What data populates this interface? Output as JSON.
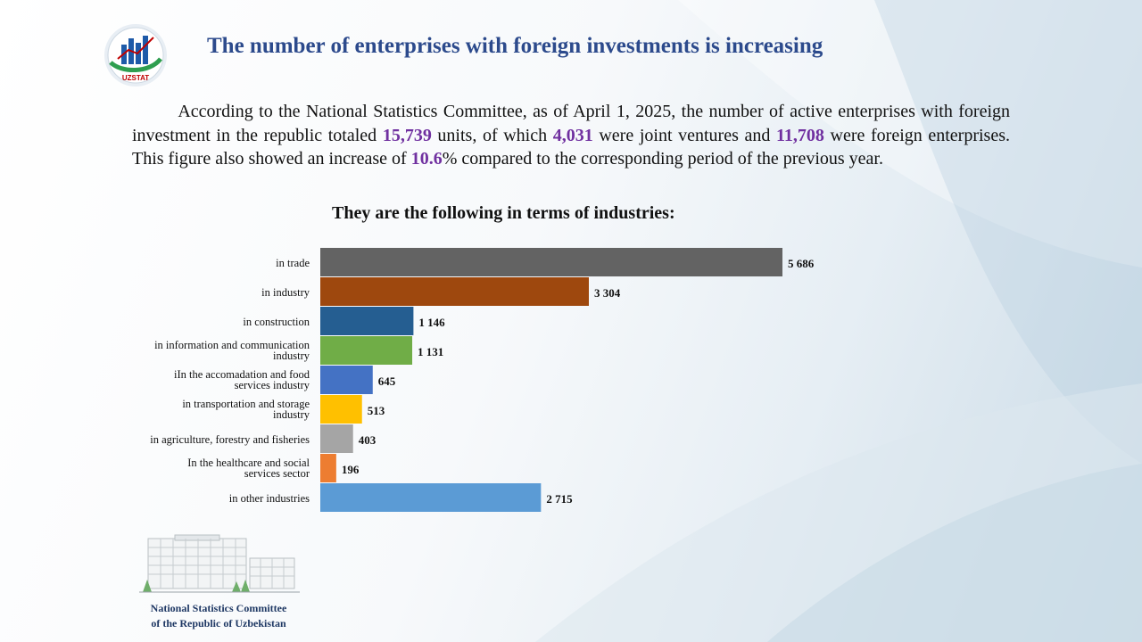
{
  "header": {
    "logo_text": "UZSTAT",
    "title": "The number of enterprises with foreign investments is increasing"
  },
  "intro": {
    "t1": "According to the National Statistics Committee, as of April 1, 2025, the number of active enterprises with foreign investment in the republic totaled ",
    "total": "15,739",
    "t2": " units, of which ",
    "joint": "4,031",
    "t3": " were joint ventures and ",
    "foreign": "11,708",
    "t4": " were foreign enterprises. This figure also showed an increase of ",
    "increase": "10.6",
    "t5": "% compared to the corresponding period of the previous year."
  },
  "subtitle": "They are the following in  terms of industries:",
  "chart_data": {
    "type": "bar",
    "orientation": "horizontal",
    "categories": [
      "in trade",
      "in industry",
      "in construction",
      "in information  and communication industry",
      "iIn the accomadation and food services industry",
      "in transportation and storage industry",
      "in agriculture, forestry and fisheries",
      "In the healthcare and social services sector",
      "in other industries"
    ],
    "category_lines": [
      [
        "in trade"
      ],
      [
        "in industry"
      ],
      [
        "in construction"
      ],
      [
        "in information  and communication",
        "industry"
      ],
      [
        "iIn the accomadation and food",
        "services industry"
      ],
      [
        "in transportation and storage",
        "industry"
      ],
      [
        "in agriculture, forestry and fisheries"
      ],
      [
        "In the healthcare and social",
        "services sector"
      ],
      [
        "in other industries"
      ]
    ],
    "values": [
      5686,
      3304,
      1146,
      1131,
      645,
      513,
      403,
      196,
      2715
    ],
    "value_labels": [
      "5 686",
      "3 304",
      "1 146",
      "1 131",
      "645",
      "513",
      "403",
      "196",
      "2 715"
    ],
    "colors": [
      "#636363",
      "#9e480e",
      "#255e91",
      "#70ad47",
      "#4472c4",
      "#ffc000",
      "#a5a5a5",
      "#ed7d31",
      "#5b9bd5"
    ],
    "xlim": [
      0,
      5686
    ]
  },
  "footer": {
    "line1": "National  Statistics Committee",
    "line2": "of the  Republic  of Uzbekistan"
  }
}
